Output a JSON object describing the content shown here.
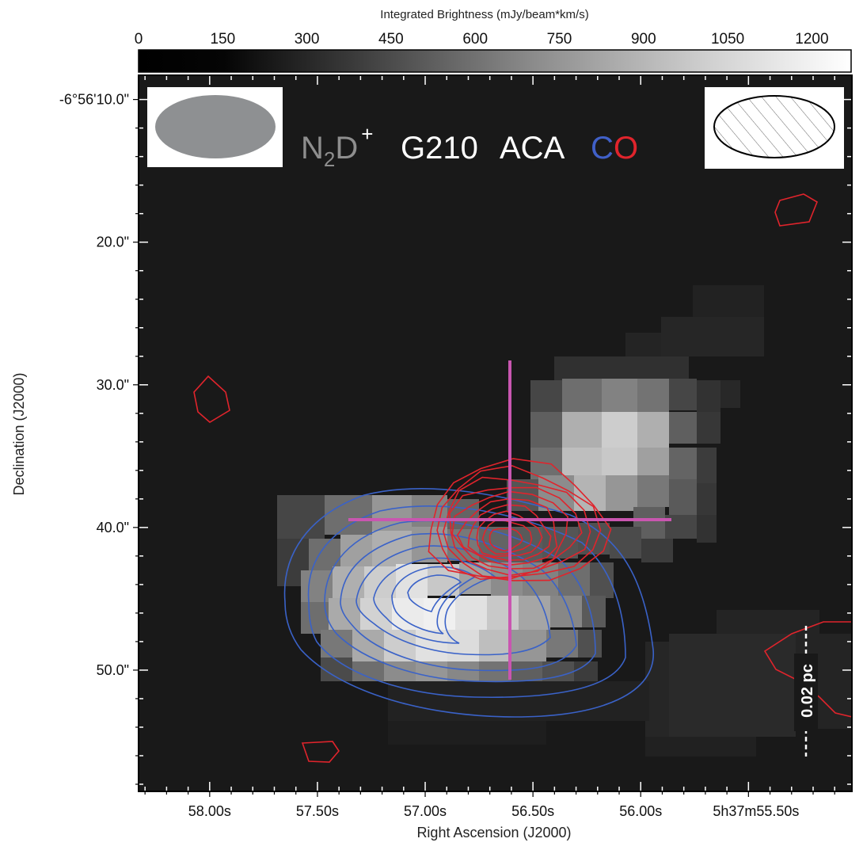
{
  "chart_data": {
    "type": "heatmap",
    "colorbar": {
      "label": "Integrated Brightness (mJy/beam*km/s)",
      "ticks": [
        "0",
        "150",
        "300",
        "450",
        "600",
        "750",
        "900",
        "1050",
        "1200"
      ],
      "tick_values": [
        0,
        150,
        300,
        450,
        600,
        750,
        900,
        1050,
        1200
      ],
      "range": [
        0,
        1270
      ],
      "colormap": "gray (black to white)"
    },
    "panel_title": {
      "species": "N",
      "sub": "2",
      "species_tail": "D",
      "sup": "+",
      "source": "G210",
      "instrument": "ACA",
      "co_c": "C",
      "co_o": "O"
    },
    "x_axis": {
      "label": "Right Ascension (J2000)",
      "ticks": [
        "58.00s",
        "57.50s",
        "57.00s",
        "56.50s",
        "56.00s",
        "5h37m55.50s"
      ],
      "tick_values_s": [
        58.0,
        57.5,
        57.0,
        56.5,
        56.0,
        55.5
      ],
      "range_s": [
        58.33,
        55.02
      ]
    },
    "y_axis": {
      "label": "Declination (J2000)",
      "ticks": [
        "-6°56'10.0\"",
        "20.0\"",
        "30.0\"",
        "40.0\"",
        "50.0\""
      ],
      "tick_values_arcsec": [
        10,
        20,
        30,
        40,
        50
      ],
      "range_arcsec": [
        8.3,
        58.5
      ]
    },
    "beams": {
      "left": "filled gray ellipse (N2D+ beam)",
      "right": "hatched ellipse (CO beam)"
    },
    "scale_bar": {
      "label": "0.02 pc"
    },
    "marker": {
      "type": "cross",
      "color": "#c956b0",
      "ra_s": 56.6,
      "dec_arcsec": 39.5
    },
    "contours": [
      {
        "name": "CO blue-shifted lobe",
        "color": "#3a62c8",
        "levels": 8
      },
      {
        "name": "CO red-shifted lobe",
        "color": "#e0242c",
        "levels": 10
      }
    ],
    "image_pixels": {
      "origin_ra_s": 58.33,
      "origin_dec_arcsec": 8.3,
      "pixel_ra_s": 0.0549,
      "pixel_dec_arcsec": 1.6,
      "rows": [
        [
          14,
          0,
          0
        ],
        [
          15,
          0,
          0
        ],
        [
          16,
          0,
          0
        ],
        [
          17,
          0,
          0
        ],
        [
          18,
          0,
          0
        ],
        [
          19,
          0,
          0
        ],
        [
          20,
          0,
          0
        ],
        [
          21,
          0,
          0
        ],
        [
          22,
          0,
          0
        ],
        [
          23,
          0,
          0
        ],
        [
          24,
          0,
          0
        ],
        [
          25,
          0,
          0
        ],
        [
          26,
          0,
          0
        ],
        [
          27,
          0,
          0
        ],
        [
          28,
          0,
          0
        ],
        [
          29,
          0,
          0
        ],
        [
          30,
          0,
          0
        ],
        [
          31,
          0,
          0
        ],
        [
          32,
          0,
          0
        ],
        [
          33,
          0,
          0
        ],
        [
          34,
          0,
          0
        ],
        [
          35,
          0,
          0
        ],
        [
          36,
          0,
          0
        ],
        [
          37,
          0,
          0
        ],
        [
          38,
          0,
          0
        ],
        [
          39,
          0,
          0
        ],
        [
          40,
          0,
          0
        ],
        [
          41,
          0,
          0
        ],
        [
          42,
          0,
          0
        ],
        [
          43,
          0,
          0
        ],
        [
          44,
          0,
          0
        ],
        [
          45,
          0,
          0
        ],
        [
          46,
          0,
          0
        ],
        [
          47,
          0,
          0
        ],
        [
          48,
          0,
          0
        ],
        [
          49,
          0,
          0
        ],
        [
          50,
          0,
          0
        ]
      ]
    }
  }
}
